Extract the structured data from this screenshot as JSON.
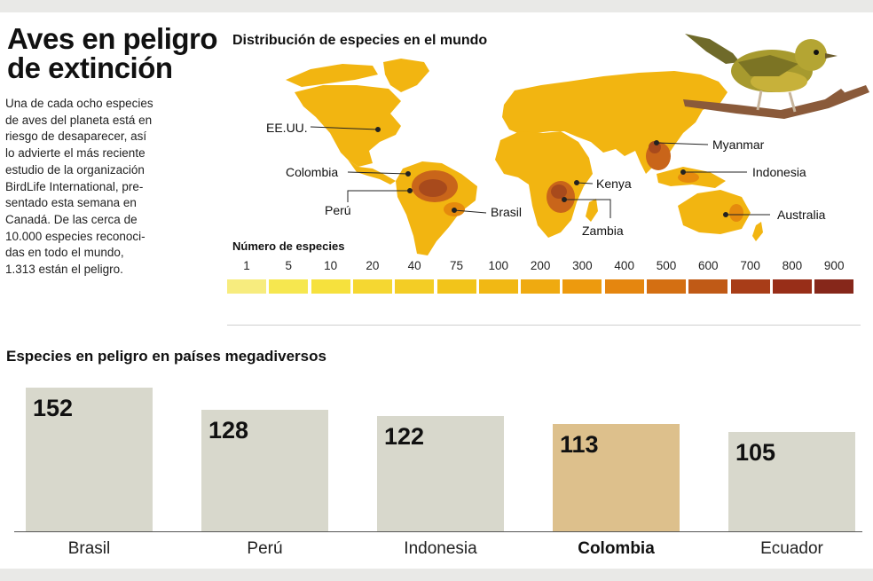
{
  "header": {
    "title_lines": [
      "Aves en peligro",
      "de extinción"
    ],
    "intro_lines": [
      "Una de cada ocho especies",
      "de aves del planeta está en",
      "riesgo de desaparecer, así",
      "lo advierte el más reciente",
      "estudio de la organización",
      "BirdLife International, pre-",
      "sentado esta semana en",
      "Canadá. De las cerca de",
      "10.000 especies reconoci-",
      "das en todo el mundo,",
      "1.313 están el peligro."
    ]
  },
  "map": {
    "title": "Distribución de especies en el mundo",
    "land_color": "#f2b511",
    "hotspot_colors": [
      "#e58a0d",
      "#c9651a",
      "#a84a1c"
    ],
    "country_labels": [
      "EE.UU.",
      "Colombia",
      "Perú",
      "Brasil",
      "Kenya",
      "Zambia",
      "Myanmar",
      "Indonesia",
      "Australia"
    ],
    "illustration_icon": "bird-on-branch-icon"
  },
  "legend": {
    "title": "Número de especies",
    "items": [
      {
        "label": "1",
        "color": "#f7ec7e"
      },
      {
        "label": "5",
        "color": "#f6e74f"
      },
      {
        "label": "10",
        "color": "#f6e13d"
      },
      {
        "label": "20",
        "color": "#f5d731"
      },
      {
        "label": "40",
        "color": "#f3cd25"
      },
      {
        "label": "75",
        "color": "#f2c41a"
      },
      {
        "label": "100",
        "color": "#f1b814"
      },
      {
        "label": "200",
        "color": "#efaa10"
      },
      {
        "label": "300",
        "color": "#ed9a0e"
      },
      {
        "label": "400",
        "color": "#e5860f"
      },
      {
        "label": "500",
        "color": "#d46f12"
      },
      {
        "label": "600",
        "color": "#c05a16"
      },
      {
        "label": "700",
        "color": "#a83d18"
      },
      {
        "label": "800",
        "color": "#982e18"
      },
      {
        "label": "900",
        "color": "#86271a"
      }
    ]
  },
  "chart_data": {
    "type": "bar",
    "title": "Especies en peligro en países megadiversos",
    "categories": [
      "Brasil",
      "Perú",
      "Indonesia",
      "Colombia",
      "Ecuador"
    ],
    "values": [
      152,
      128,
      122,
      113,
      105
    ],
    "highlight": "Colombia",
    "bar_color": "#d8d8cc",
    "highlight_color": "#ddc08c",
    "xlabel": "",
    "ylabel": "",
    "ylim": [
      0,
      160
    ],
    "grid": false
  }
}
